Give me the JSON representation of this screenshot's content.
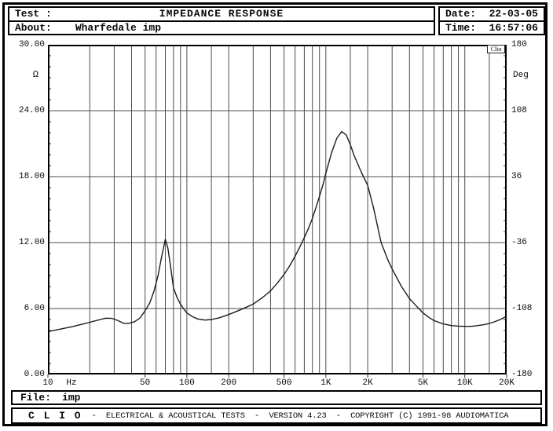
{
  "window": {
    "header": {
      "test_label": "Test :",
      "title": "IMPEDANCE RESPONSE",
      "about_label": "About:",
      "about_value": "Wharfedale imp",
      "date_label": "Date:",
      "date_value": "22-03-05",
      "time_label": "Time:",
      "time_value": "16:57:06"
    },
    "file_bar": {
      "label": "File:",
      "value": "imp"
    },
    "footer": {
      "brand": "C L I O",
      "text": "-  ELECTRICAL & ACOUSTICAL TESTS  -  VERSION 4.23  -  COPYRIGHT (C) 1991-98 AUDIOMATICA"
    }
  },
  "colors": {
    "background": "#ffffff",
    "border": "#000000",
    "grid": "#4d4d4d",
    "curve": "#1c1c1c",
    "text": "#0a0a0a"
  },
  "chart_data": {
    "type": "line",
    "title": "IMPEDANCE RESPONSE",
    "watermark": "Clio",
    "grid": true,
    "x_axis": {
      "label": "Hz",
      "scale": "log",
      "min": 10,
      "max": 20000,
      "tick_labels": [
        "10",
        "50",
        "100",
        "200",
        "500",
        "1K",
        "2K",
        "5K",
        "10K",
        "20K"
      ],
      "tick_values": [
        10,
        50,
        100,
        200,
        500,
        1000,
        2000,
        5000,
        10000,
        20000
      ],
      "gridline_values": [
        20,
        30,
        40,
        50,
        60,
        70,
        80,
        90,
        100,
        150,
        200,
        300,
        400,
        500,
        600,
        700,
        800,
        900,
        1000,
        1500,
        2000,
        3000,
        4000,
        5000,
        6000,
        7000,
        8000,
        9000,
        10000,
        15000
      ]
    },
    "y_left": {
      "label": "Ω",
      "unit": "ohm",
      "min": 0,
      "max": 30,
      "tick_labels": [
        "30.00",
        "24.00",
        "18.00",
        "12.00",
        "6.00",
        "0.00"
      ],
      "tick_values": [
        30,
        24,
        18,
        12,
        6,
        0
      ],
      "gridline_values": [
        6,
        12,
        18,
        24
      ]
    },
    "y_right": {
      "label": "Deg",
      "unit": "degrees",
      "min": -180,
      "max": 180,
      "tick_labels": [
        "180",
        "108",
        "36",
        "-36",
        "-108",
        "-180"
      ],
      "tick_values": [
        180,
        108,
        36,
        -36,
        -108,
        -180
      ]
    },
    "series": [
      {
        "name": "Impedance modulus",
        "unit": "ohm",
        "points": [
          [
            10,
            3.9
          ],
          [
            12,
            4.1
          ],
          [
            15,
            4.35
          ],
          [
            18,
            4.6
          ],
          [
            20,
            4.75
          ],
          [
            23,
            4.95
          ],
          [
            26,
            5.12
          ],
          [
            29,
            5.1
          ],
          [
            32,
            4.9
          ],
          [
            35,
            4.65
          ],
          [
            38,
            4.65
          ],
          [
            42,
            4.8
          ],
          [
            46,
            5.15
          ],
          [
            50,
            5.8
          ],
          [
            54,
            6.5
          ],
          [
            58,
            7.6
          ],
          [
            62,
            9.0
          ],
          [
            66,
            10.8
          ],
          [
            70,
            12.3
          ],
          [
            73,
            11.5
          ],
          [
            76,
            10.0
          ],
          [
            80,
            7.9
          ],
          [
            85,
            7.0
          ],
          [
            90,
            6.4
          ],
          [
            95,
            5.95
          ],
          [
            100,
            5.6
          ],
          [
            110,
            5.25
          ],
          [
            120,
            5.05
          ],
          [
            135,
            4.95
          ],
          [
            150,
            5.0
          ],
          [
            170,
            5.15
          ],
          [
            200,
            5.45
          ],
          [
            250,
            5.95
          ],
          [
            300,
            6.4
          ],
          [
            350,
            7.0
          ],
          [
            400,
            7.6
          ],
          [
            450,
            8.35
          ],
          [
            500,
            9.1
          ],
          [
            550,
            9.9
          ],
          [
            600,
            10.75
          ],
          [
            650,
            11.6
          ],
          [
            700,
            12.45
          ],
          [
            750,
            13.3
          ],
          [
            800,
            14.2
          ],
          [
            850,
            15.2
          ],
          [
            900,
            16.2
          ],
          [
            950,
            17.2
          ],
          [
            1000,
            18.3
          ],
          [
            1100,
            20.2
          ],
          [
            1200,
            21.5
          ],
          [
            1300,
            22.1
          ],
          [
            1400,
            21.8
          ],
          [
            1500,
            20.9
          ],
          [
            1600,
            19.9
          ],
          [
            1800,
            18.4
          ],
          [
            2000,
            17.2
          ],
          [
            2200,
            15.2
          ],
          [
            2500,
            12.0
          ],
          [
            2800,
            10.4
          ],
          [
            3000,
            9.6
          ],
          [
            3500,
            8.0
          ],
          [
            4000,
            6.9
          ],
          [
            4500,
            6.2
          ],
          [
            5000,
            5.6
          ],
          [
            5500,
            5.2
          ],
          [
            6000,
            4.9
          ],
          [
            7000,
            4.6
          ],
          [
            8000,
            4.45
          ],
          [
            9000,
            4.4
          ],
          [
            10000,
            4.38
          ],
          [
            11000,
            4.38
          ],
          [
            12000,
            4.42
          ],
          [
            14000,
            4.55
          ],
          [
            16000,
            4.75
          ],
          [
            18000,
            5.0
          ],
          [
            20000,
            5.3
          ]
        ]
      }
    ]
  }
}
